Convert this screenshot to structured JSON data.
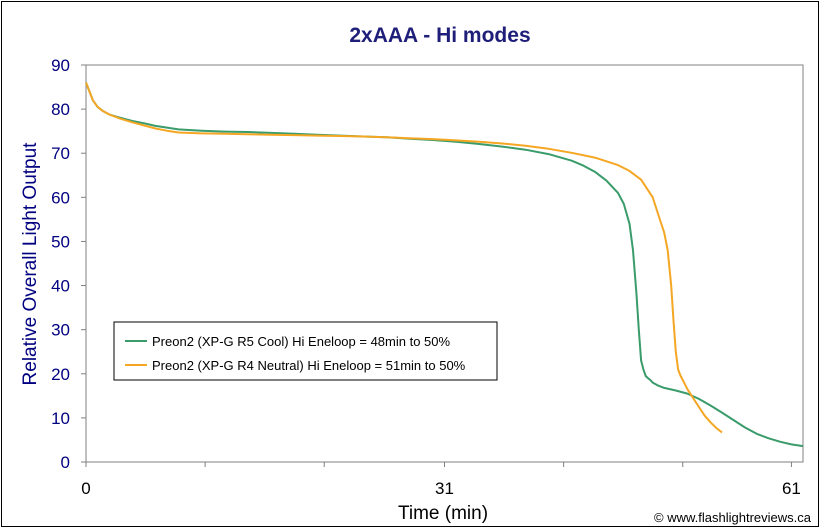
{
  "chart_data": {
    "type": "line",
    "title": "2xAAA - Hi modes",
    "xlabel": "Time (min)",
    "ylabel": "Relative Overall Light Output",
    "xlim": [
      0,
      62
    ],
    "ylim": [
      0,
      90
    ],
    "y_ticks": [
      0,
      10,
      20,
      30,
      40,
      50,
      60,
      70,
      80,
      90
    ],
    "x_tick_labels": [
      {
        "value": 0,
        "label": "0"
      },
      {
        "value": 31,
        "label": "31"
      },
      {
        "value": 61,
        "label": "61"
      }
    ],
    "x_minor_ticks": [
      0,
      10.3,
      20.6,
      31,
      41.3,
      51.6,
      61
    ],
    "grid": false,
    "legend_position": "lower-left",
    "series": [
      {
        "name": "Preon2 (XP-G R5 Cool) Hi Eneloop = 48min to 50%",
        "color": "#3a9b6b",
        "x": [
          0,
          0.3,
          0.6,
          1,
          1.5,
          2,
          3,
          4,
          5,
          6,
          7,
          8,
          10,
          12,
          14,
          16,
          18,
          20,
          22,
          24,
          26,
          28,
          30,
          32,
          34,
          36,
          38,
          40,
          42,
          43,
          44,
          45,
          46,
          46.5,
          47,
          47.3,
          47.6,
          47.8,
          48,
          48.2,
          48.4,
          48.6,
          48.8,
          49,
          49.5,
          50,
          51,
          52,
          53,
          54,
          55,
          56,
          57,
          58,
          59,
          60,
          61,
          62
        ],
        "y": [
          86,
          84,
          82,
          80.5,
          79.5,
          78.8,
          78,
          77.3,
          76.8,
          76.2,
          75.8,
          75.4,
          75.1,
          74.9,
          74.8,
          74.6,
          74.4,
          74.2,
          74,
          73.8,
          73.6,
          73.3,
          73,
          72.6,
          72.1,
          71.5,
          70.8,
          69.8,
          68.3,
          67.2,
          65.8,
          63.8,
          61,
          58.5,
          54,
          48,
          38,
          30,
          23,
          21,
          19.5,
          19,
          18.6,
          18,
          17.3,
          16.8,
          16.2,
          15.5,
          14.3,
          12.8,
          11.2,
          9.5,
          7.8,
          6.4,
          5.4,
          4.6,
          4,
          3.6
        ]
      },
      {
        "name": "Preon2 (XP-G R4 Neutral) Hi Eneloop = 51min to 50%",
        "color": "#f5a623",
        "x": [
          0,
          0.3,
          0.6,
          1,
          1.5,
          2,
          3,
          4,
          5,
          6,
          7,
          8,
          10,
          12,
          14,
          16,
          18,
          20,
          22,
          24,
          26,
          28,
          30,
          32,
          34,
          36,
          38,
          40,
          42,
          44,
          46,
          47,
          48,
          49,
          49.5,
          50,
          50.3,
          50.6,
          50.8,
          51,
          51.2,
          51.4,
          51.7,
          52,
          52.5,
          53,
          53.5,
          54,
          54.5,
          55
        ],
        "y": [
          86,
          84,
          82,
          80.5,
          79.5,
          78.8,
          77.8,
          77,
          76.3,
          75.6,
          75.1,
          74.7,
          74.5,
          74.4,
          74.3,
          74.2,
          74.1,
          74,
          73.9,
          73.8,
          73.6,
          73.4,
          73.2,
          72.9,
          72.6,
          72.2,
          71.7,
          71,
          70.1,
          69,
          67.3,
          66,
          64,
          60,
          56,
          52,
          48,
          40,
          32,
          25,
          21,
          19.6,
          18.1,
          16.5,
          14.5,
          12.5,
          10.5,
          9,
          7.7,
          6.7
        ]
      }
    ]
  },
  "credit": "© www.flashlightreviews.ca"
}
